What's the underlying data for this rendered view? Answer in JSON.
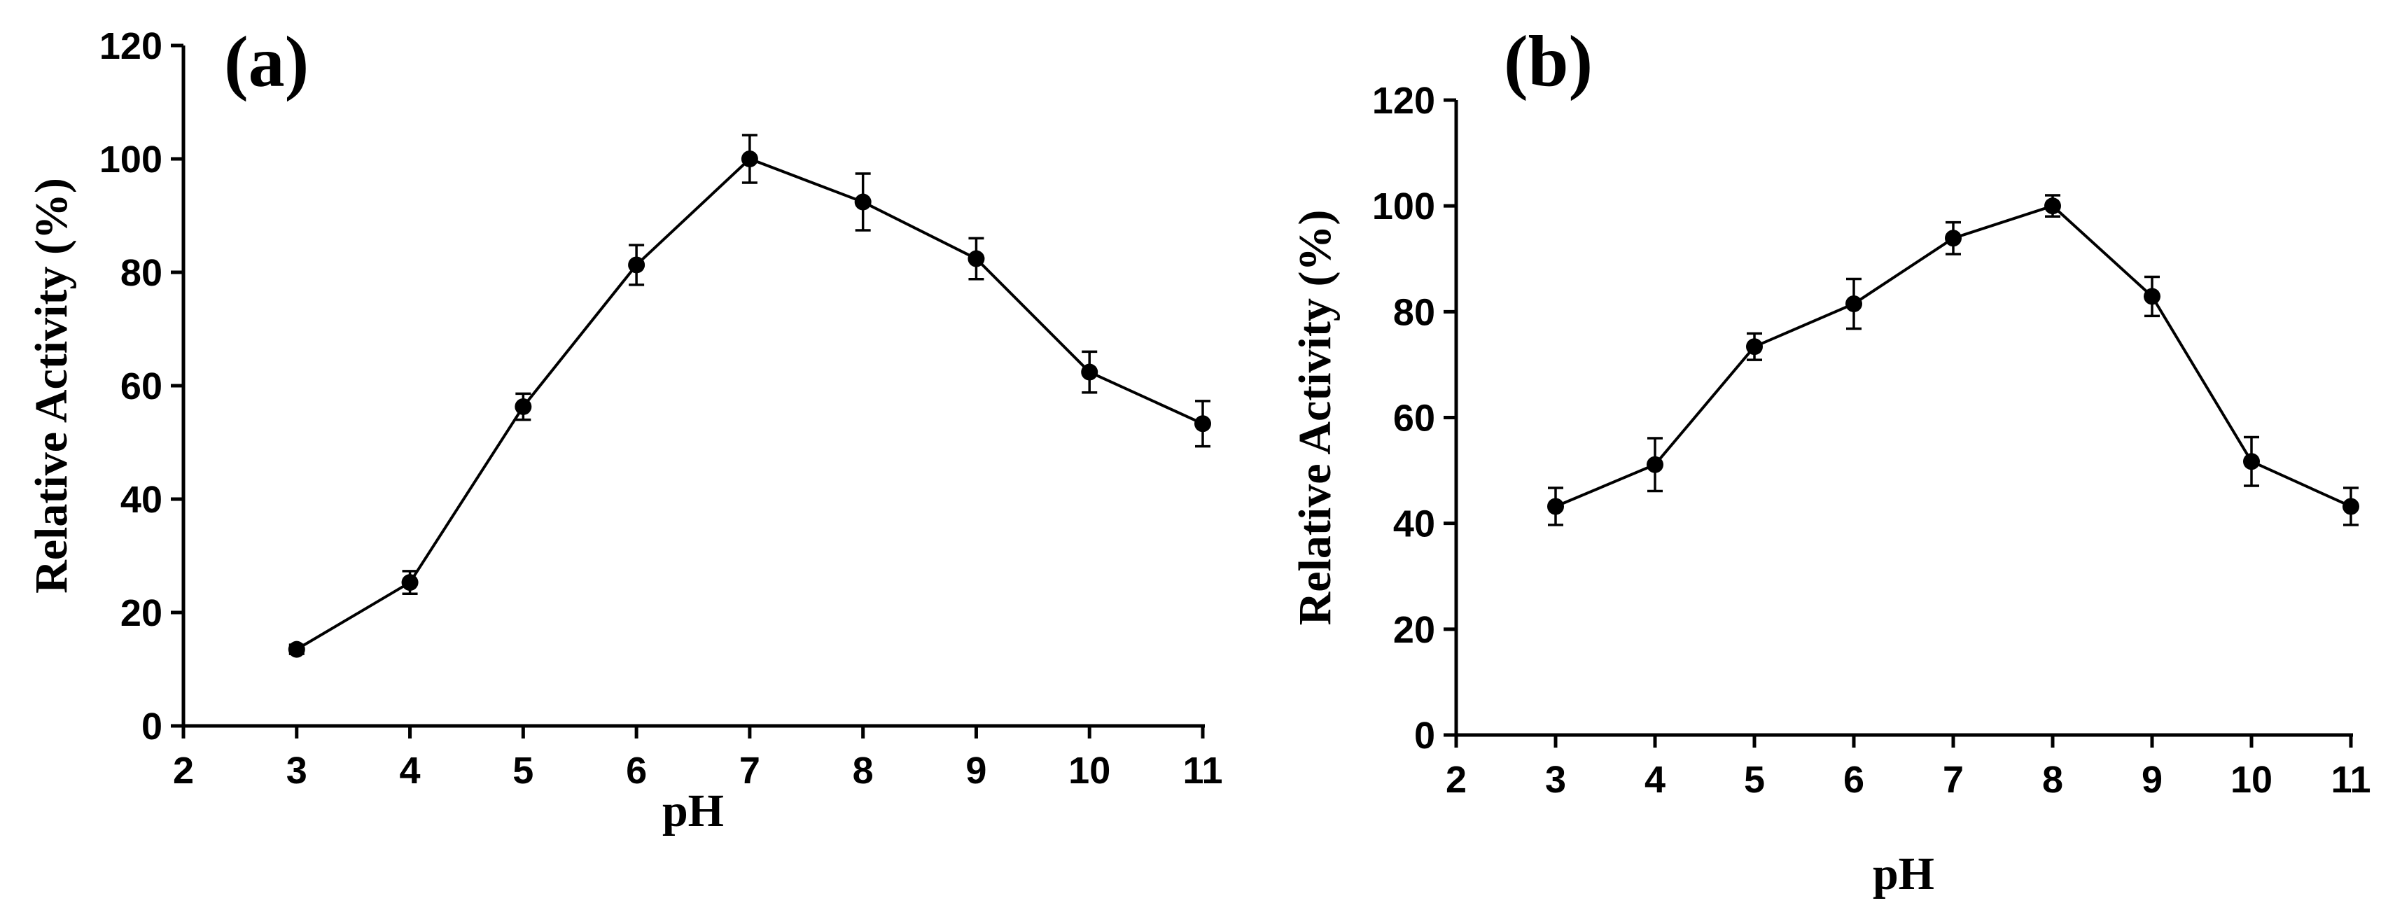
{
  "chart_data": [
    {
      "type": "line",
      "panel_label": "(a)",
      "xlabel": "pH",
      "ylabel": "Relative Activity (%)",
      "xlim": [
        2,
        11
      ],
      "ylim": [
        0,
        120
      ],
      "xticks": [
        2,
        3,
        4,
        5,
        6,
        7,
        8,
        9,
        10,
        11
      ],
      "yticks": [
        0,
        20,
        40,
        60,
        80,
        100,
        120
      ],
      "series": [
        {
          "name": "Relative Activity",
          "x": [
            3,
            4,
            5,
            6,
            7,
            8,
            9,
            10,
            11
          ],
          "y": [
            13.5,
            25.3,
            56.3,
            81.3,
            100,
            92.4,
            82.4,
            62.4,
            53.3
          ],
          "error": [
            0.8,
            2.0,
            2.3,
            3.5,
            4.2,
            5.0,
            3.6,
            3.6,
            4.0
          ]
        }
      ]
    },
    {
      "type": "line",
      "panel_label": "(b)",
      "xlabel": "pH",
      "ylabel": "Relative Activity (%)",
      "xlim": [
        2,
        11
      ],
      "ylim": [
        0,
        120
      ],
      "xticks": [
        2,
        3,
        4,
        5,
        6,
        7,
        8,
        9,
        10,
        11
      ],
      "yticks": [
        0,
        20,
        40,
        60,
        80,
        100,
        120
      ],
      "series": [
        {
          "name": "Relative Activity",
          "x": [
            3,
            4,
            5,
            6,
            7,
            8,
            9,
            10,
            11
          ],
          "y": [
            43.2,
            51.1,
            73.4,
            81.5,
            93.9,
            100,
            82.9,
            51.7,
            43.2
          ],
          "error": [
            3.5,
            5.0,
            2.5,
            4.7,
            3.0,
            2.0,
            3.7,
            4.6,
            3.5
          ]
        }
      ]
    }
  ]
}
